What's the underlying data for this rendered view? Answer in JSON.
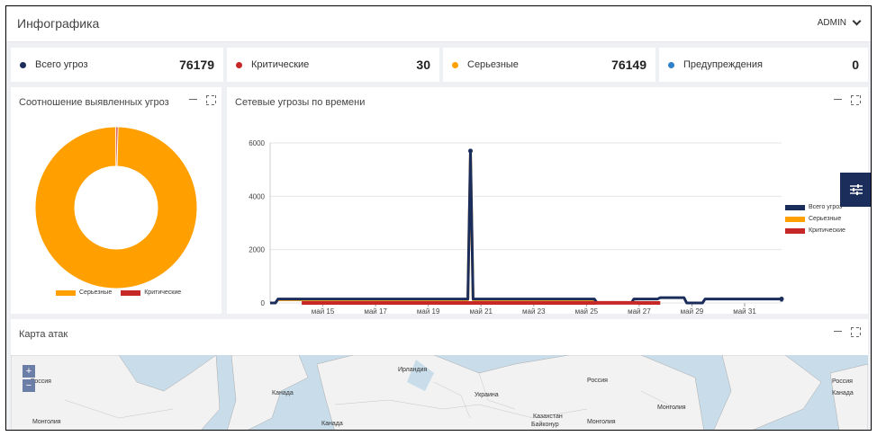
{
  "header": {
    "title": "Инфографика",
    "user": "ADMIN"
  },
  "stats": [
    {
      "label": "Всего угроз",
      "value": "76179",
      "color": "#1b2d5b"
    },
    {
      "label": "Критические",
      "value": "30",
      "color": "#c62828"
    },
    {
      "label": "Серьезные",
      "value": "76149",
      "color": "#ffa000"
    },
    {
      "label": "Предупреждения",
      "value": "0",
      "color": "#2f80c8"
    }
  ],
  "ratio_panel": {
    "title": "Соотношение выявленных угроз",
    "legend": [
      {
        "label": "Серьезные",
        "color": "#ffa000"
      },
      {
        "label": "Критические",
        "color": "#c62828"
      }
    ]
  },
  "time_panel": {
    "title": "Сетевые угрозы по времени",
    "legend": [
      {
        "label": "Всего угроз",
        "color": "#1b2d5b"
      },
      {
        "label": "Серьезные",
        "color": "#ffa000"
      },
      {
        "label": "Критические",
        "color": "#c62828"
      }
    ]
  },
  "map_panel": {
    "title": "Карта атак",
    "zoom_in": "+",
    "zoom_out": "−",
    "labels": [
      "Россия",
      "Канада",
      "Монголия",
      "Ирландия",
      "Украина",
      "Казахстан",
      "Байконур",
      "Россия",
      "Монголия",
      "Канада",
      "Россия",
      "Монголия",
      "Канада"
    ]
  },
  "chart_data": [
    {
      "type": "pie",
      "labels": [
        "Серьезные",
        "Критические"
      ],
      "values": [
        76149,
        30
      ],
      "colors": [
        "#ffa000",
        "#c62828"
      ]
    },
    {
      "type": "line",
      "ylim": [
        0,
        6000
      ],
      "yticks": [
        0,
        2000,
        4000,
        6000
      ],
      "xticks": [
        "май 15",
        "май 17",
        "май 19",
        "май 21",
        "май 23",
        "май 25",
        "май 27",
        "май 29",
        "май 31"
      ],
      "xticks_at": [
        15,
        17,
        19,
        21,
        23,
        25,
        27,
        29,
        31
      ],
      "xlim": [
        13.0,
        32.4
      ],
      "series": [
        {
          "name": "Всего угроз",
          "color": "#1b2d5b",
          "points": [
            [
              13.0,
              0
            ],
            [
              13.2,
              0
            ],
            [
              13.3,
              150
            ],
            [
              20.5,
              150
            ],
            [
              20.6,
              5700
            ],
            [
              20.7,
              150
            ],
            [
              25.3,
              150
            ],
            [
              25.4,
              0
            ],
            [
              26.7,
              0
            ],
            [
              26.8,
              150
            ],
            [
              27.7,
              150
            ],
            [
              27.8,
              200
            ],
            [
              28.7,
              200
            ],
            [
              28.8,
              0
            ],
            [
              29.4,
              0
            ],
            [
              29.5,
              150
            ],
            [
              32.4,
              150
            ],
            [
              32.4,
              50
            ]
          ]
        },
        {
          "name": "Серьезные",
          "color": "#ffa000",
          "points": [
            [
              13.3,
              120
            ],
            [
              20.5,
              120
            ],
            [
              20.6,
              5680
            ],
            [
              20.7,
              120
            ],
            [
              25.3,
              120
            ]
          ]
        },
        {
          "name": "Критические",
          "color": "#c62828",
          "points": [
            [
              14.2,
              0
            ],
            [
              25.3,
              0
            ],
            [
              25.4,
              5
            ],
            [
              26.9,
              5
            ],
            [
              27.0,
              0
            ],
            [
              27.8,
              0
            ]
          ]
        }
      ]
    }
  ]
}
